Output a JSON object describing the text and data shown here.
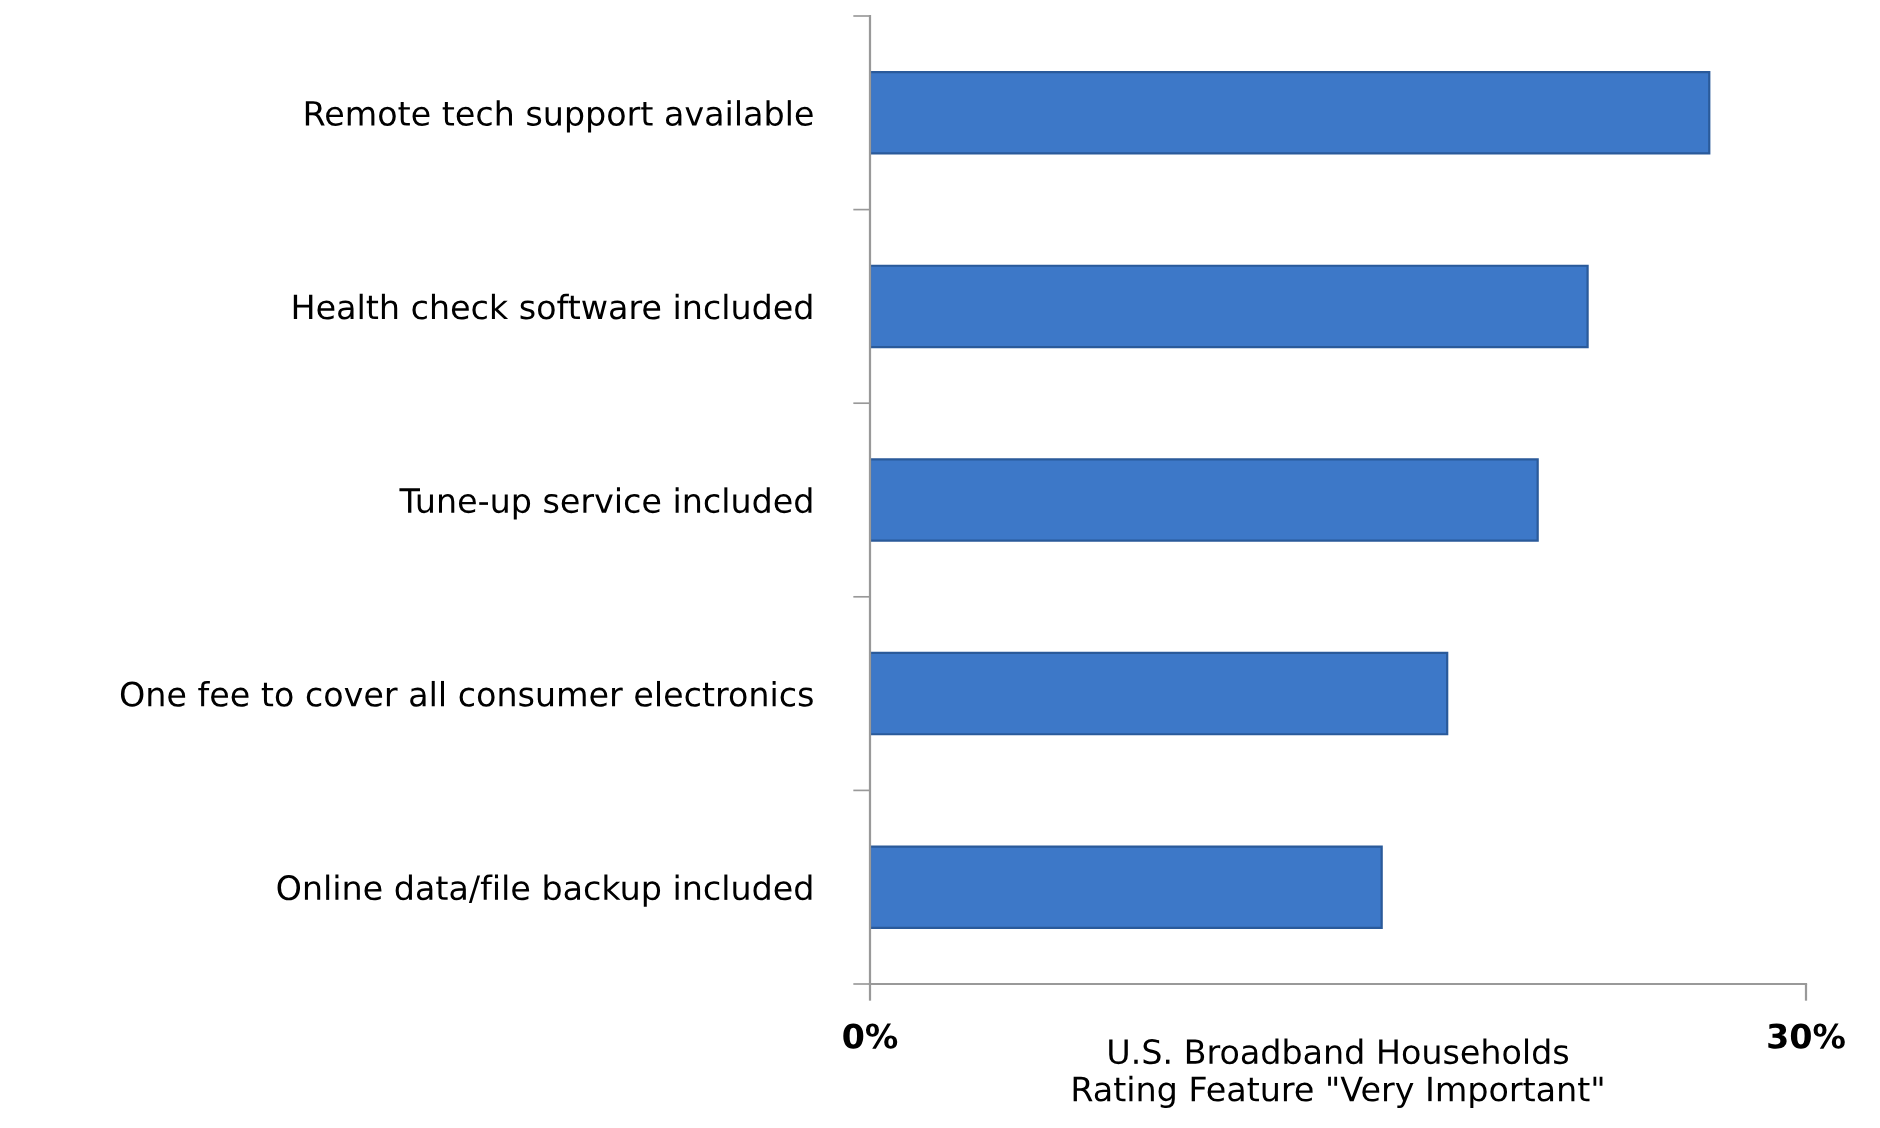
{
  "chart_data": {
    "type": "bar",
    "orientation": "horizontal",
    "categories": [
      "Remote tech support available",
      "Health check software included",
      "Tune-up service included",
      "One fee to cover all consumer electronics",
      "Online data/file backup included"
    ],
    "values": [
      26.9,
      23.0,
      21.4,
      18.5,
      16.4
    ],
    "color": "#3d78c8",
    "xlim": [
      0,
      30
    ],
    "xticks": [
      {
        "value": 0,
        "label": "0%"
      },
      {
        "value": 30,
        "label": "30%"
      }
    ],
    "xlabel": "U.S. Broadband Households\nRating Feature \"Very Important\"",
    "grid": false,
    "legend": false
  }
}
